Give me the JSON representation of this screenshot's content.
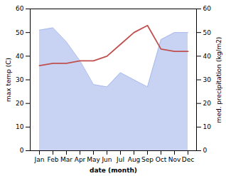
{
  "chart_data": {
    "type": "line",
    "categories": [
      "Jan",
      "Feb",
      "Mar",
      "Apr",
      "May",
      "Jun",
      "Jul",
      "Aug",
      "Sep",
      "Oct",
      "Nov",
      "Dec"
    ],
    "xlabel": "date (month)",
    "ylabel": "max temp (C)",
    "y2label": "med. precipitation (kg/m2)",
    "ylim": [
      0,
      60
    ],
    "yticks": [
      0,
      10,
      20,
      30,
      40,
      50,
      60
    ],
    "y2lim": [
      0,
      60
    ],
    "y2ticks": [
      0,
      10,
      20,
      30,
      40,
      50,
      60
    ],
    "series": [
      {
        "type": "area",
        "axis": "y2",
        "color": "#aabbee",
        "values": [
          51,
          52,
          46,
          38,
          28,
          27,
          33,
          30,
          27,
          47,
          50,
          50
        ]
      },
      {
        "type": "line",
        "color": "#c0504d",
        "values": [
          36,
          37,
          37,
          38,
          38,
          40,
          45,
          50,
          53,
          43,
          42,
          42
        ]
      }
    ]
  }
}
